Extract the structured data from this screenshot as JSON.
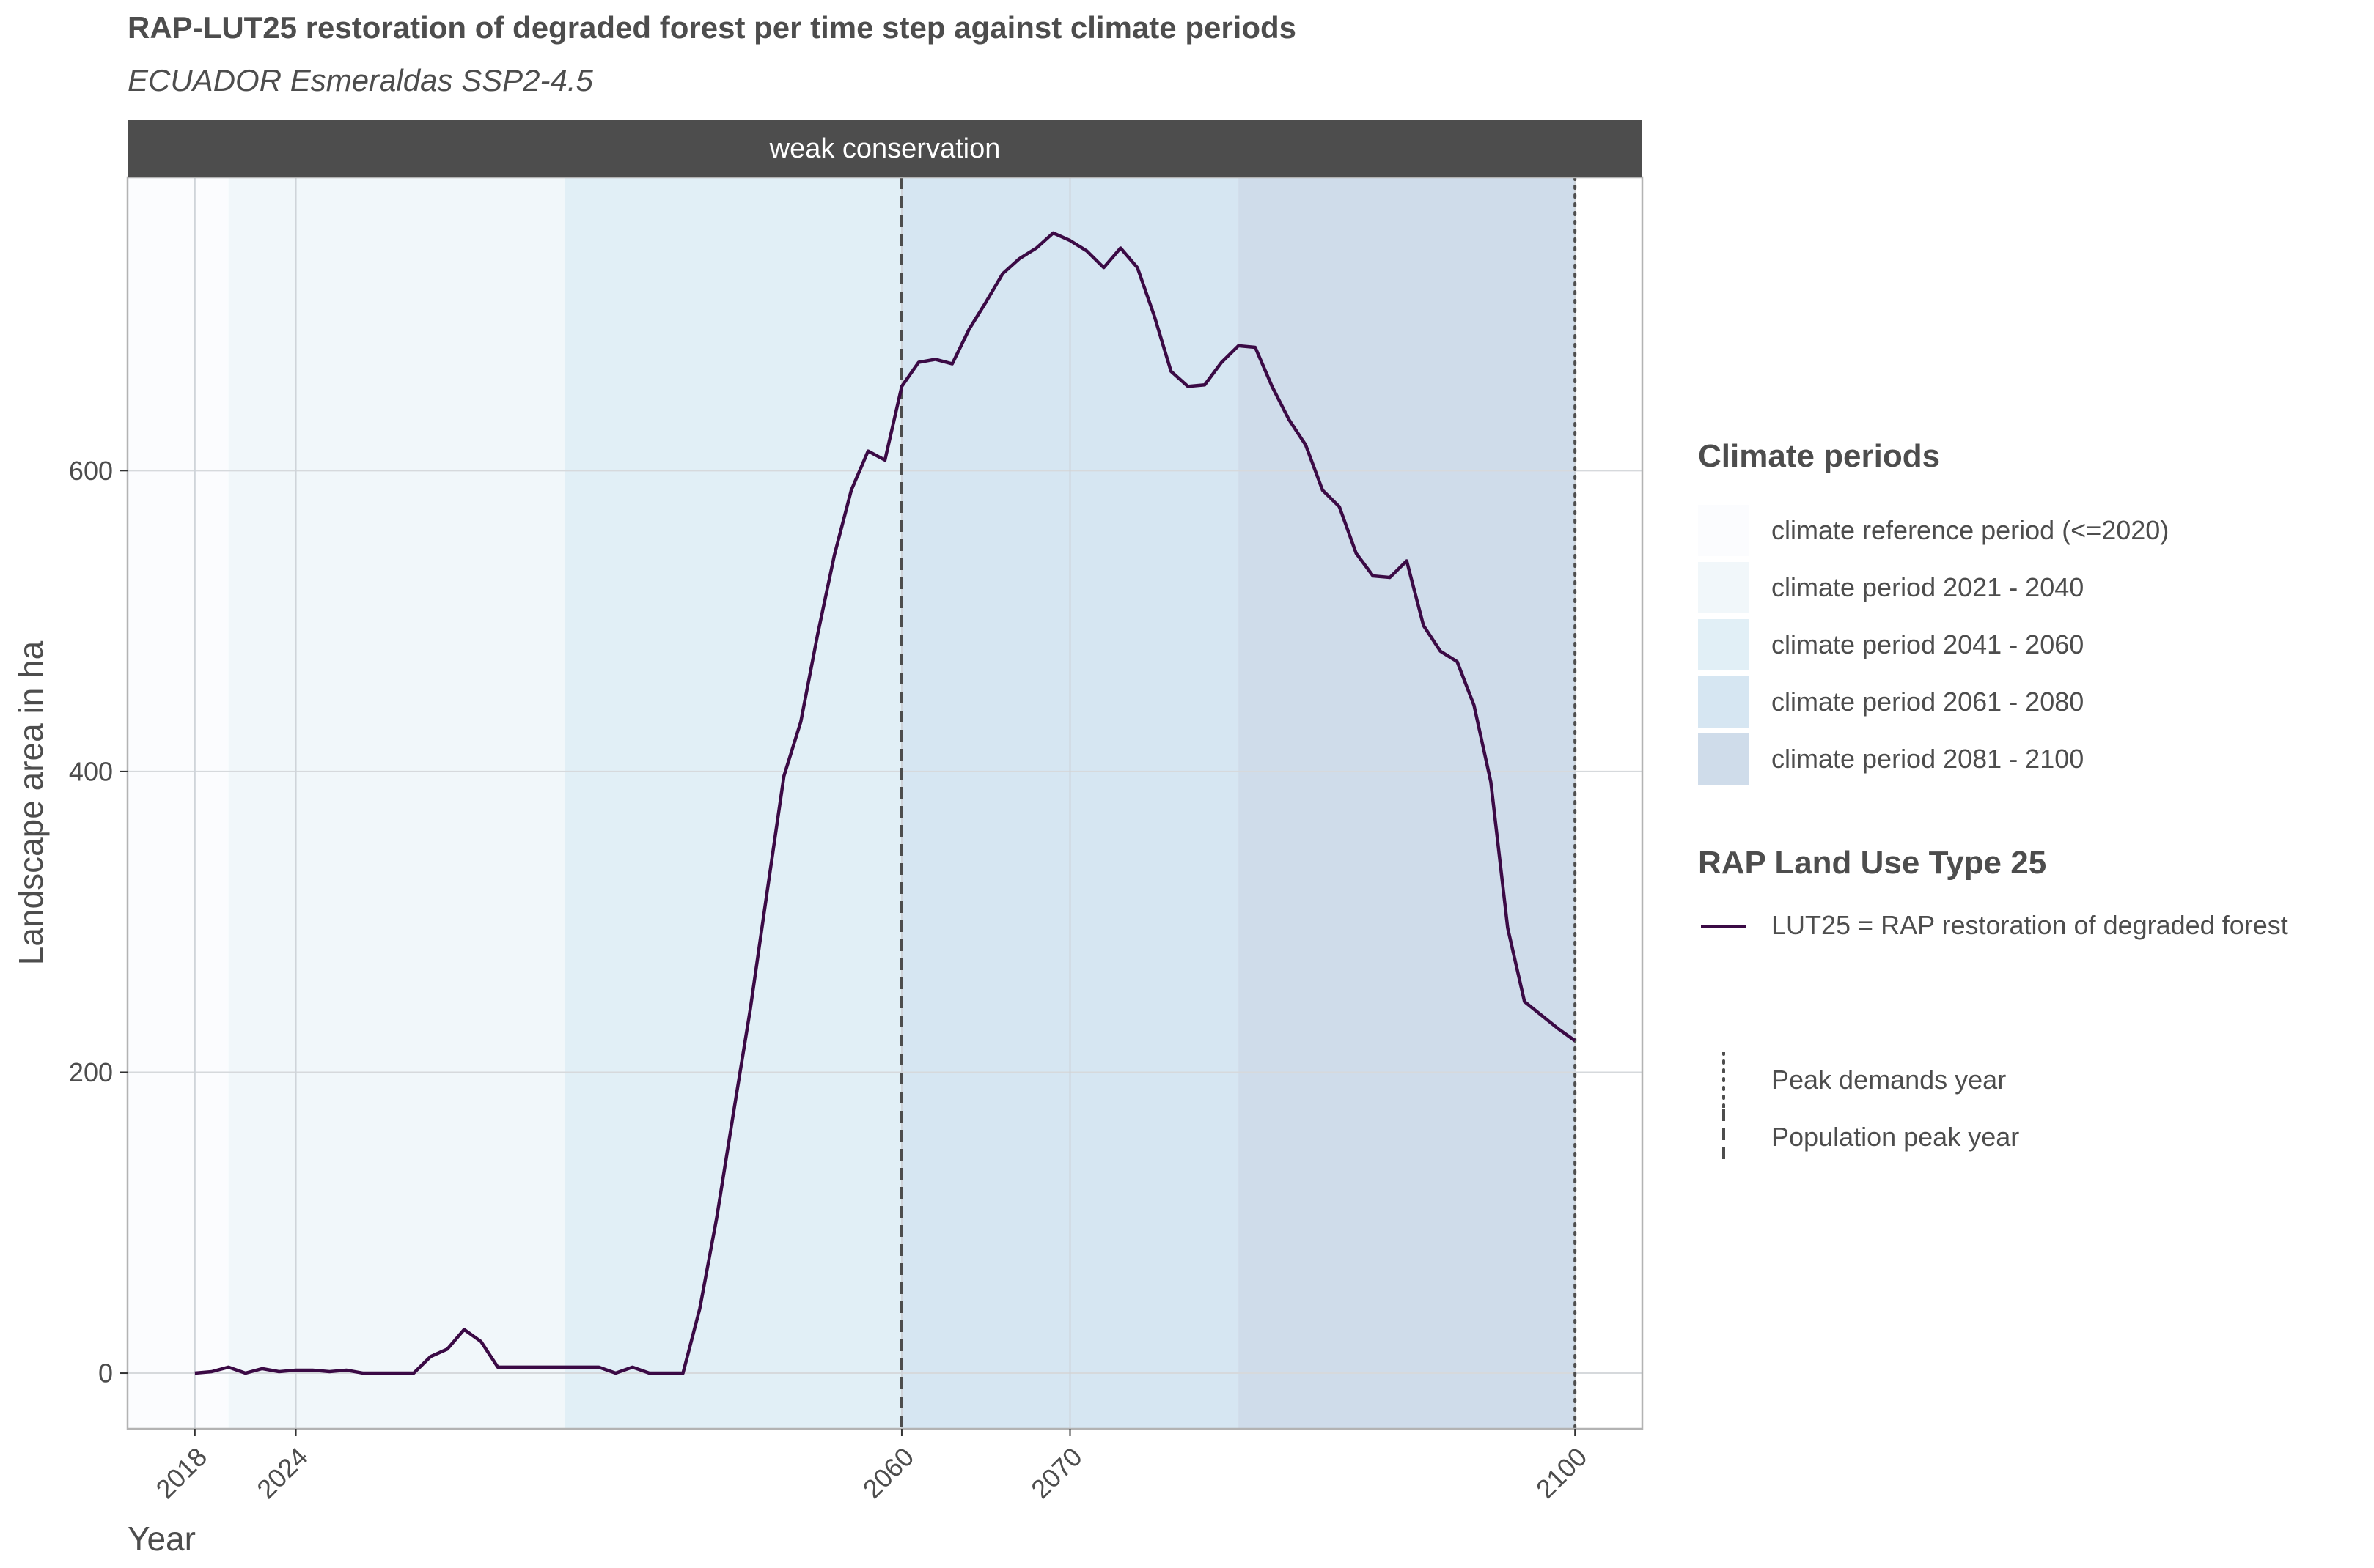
{
  "title": "RAP-LUT25 restoration of degraded forest per time step against climate periods",
  "subtitle": "ECUADOR Esmeraldas SSP2-4.5",
  "chart_data": {
    "type": "line",
    "facet_label": "weak conservation",
    "xlabel": "Year",
    "ylabel": "Landscape area in ha",
    "xlim": [
      2014,
      2104
    ],
    "ylim": [
      -37,
      795
    ],
    "x_ticks": [
      2018,
      2024,
      2060,
      2070,
      2100
    ],
    "y_ticks": [
      0,
      200,
      400,
      600
    ],
    "grid": true,
    "legend_position": "right",
    "climate_periods": {
      "title": "Climate periods",
      "items": [
        {
          "label": "climate reference period (<=2020)",
          "start": 2014,
          "end": 2020,
          "color": "#fbfcfe"
        },
        {
          "label": "climate period 2021 - 2040",
          "start": 2020,
          "end": 2040,
          "color": "#f1f7fa"
        },
        {
          "label": "climate period 2041 - 2060",
          "start": 2040,
          "end": 2060,
          "color": "#e1eff6"
        },
        {
          "label": "climate period 2061 - 2080",
          "start": 2060,
          "end": 2080,
          "color": "#d6e6f2"
        },
        {
          "label": "climate period 2081 - 2100",
          "start": 2080,
          "end": 2100,
          "color": "#cfdcea"
        }
      ]
    },
    "series_legend_title": "RAP Land Use Type 25",
    "series": [
      {
        "name": "LUT25 = RAP restoration of degraded forest",
        "color": "#3b0a45",
        "x": [
          2018,
          2019,
          2020,
          2021,
          2022,
          2023,
          2024,
          2025,
          2026,
          2027,
          2028,
          2029,
          2030,
          2031,
          2032,
          2033,
          2034,
          2035,
          2036,
          2037,
          2038,
          2039,
          2040,
          2041,
          2042,
          2043,
          2044,
          2045,
          2046,
          2047,
          2048,
          2049,
          2050,
          2051,
          2052,
          2053,
          2054,
          2055,
          2056,
          2057,
          2058,
          2059,
          2060,
          2061,
          2062,
          2063,
          2064,
          2065,
          2066,
          2067,
          2068,
          2069,
          2070,
          2071,
          2072,
          2073,
          2074,
          2075,
          2076,
          2077,
          2078,
          2079,
          2080,
          2081,
          2082,
          2083,
          2084,
          2085,
          2086,
          2087,
          2088,
          2089,
          2090,
          2091,
          2092,
          2093,
          2094,
          2095,
          2096,
          2097,
          2098,
          2099,
          2100
        ],
        "values": [
          0,
          1,
          4,
          0,
          3,
          1,
          2,
          2,
          1,
          2,
          0,
          0,
          0,
          0,
          11,
          16,
          29,
          21,
          4,
          4,
          4,
          4,
          4,
          4,
          4,
          0,
          4,
          0,
          0,
          0,
          43,
          103,
          173,
          242,
          320,
          397,
          433,
          491,
          544,
          587,
          613,
          607,
          656,
          672,
          674,
          671,
          694,
          712,
          731,
          741,
          748,
          758,
          753,
          746,
          735,
          748,
          735,
          703,
          666,
          656,
          657,
          672,
          683,
          682,
          656,
          634,
          617,
          587,
          576,
          545,
          530,
          529,
          540,
          497,
          480,
          473,
          444,
          393,
          296,
          247,
          238,
          229,
          221
        ]
      }
    ],
    "reference_lines": {
      "items": [
        {
          "label": "Peak demands year",
          "x": 2100,
          "style": "dotted"
        },
        {
          "label": "Population peak year",
          "x": 2060,
          "style": "dashed"
        }
      ]
    }
  }
}
